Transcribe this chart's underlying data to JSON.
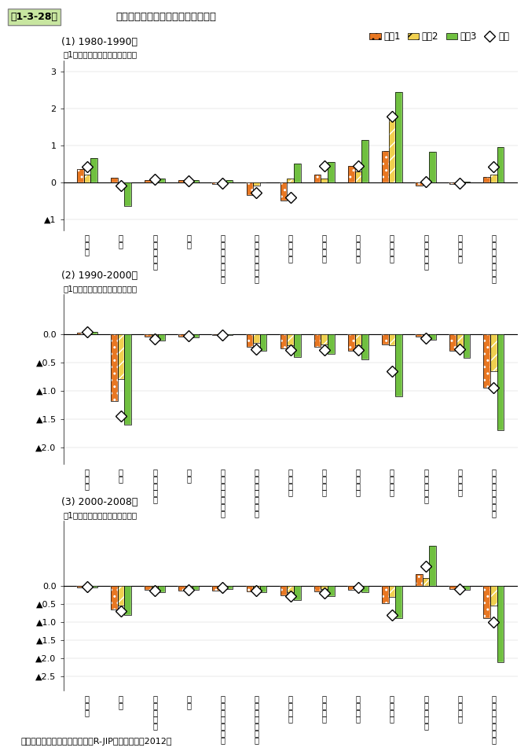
{
  "title_fig": "第1-3-28図",
  "title_main": "地域別に見た製造業就業者数の変化",
  "subtitle_note": "資料：（独）経済産業研究所「R-JIPデータベース2012」",
  "categories": [
    "食料品",
    "繊維",
    "パルプ・紙",
    "化学",
    "石油・石炭製品",
    "窯業・土石製品",
    "一次金属",
    "金属製品",
    "一般機械",
    "電気機械",
    "輸送用機械",
    "精密機械",
    "その他の製造業"
  ],
  "cat_display": [
    "食\n料\n品",
    "繊\n維",
    "パ\nル\nプ\n・\n紙",
    "化\n学",
    "石\n油\n・\n石\n炭\n製\n品",
    "窯\n業\n・\n土\n石\n製\n品",
    "一\n次\n金\n属",
    "金\n属\n製\n品",
    "一\n般\n機\n械",
    "電\n気\n機\n械",
    "輸\n送\n用\n機\n械",
    "精\n密\n機\n械",
    "そ\nの\n他\nの\n製\n造\n業"
  ],
  "panels": [
    {
      "title": "(1) 1980-1990年",
      "ylabel": "（1都道府県当たり平均、万人）",
      "ylim": [
        -1.3,
        3.3
      ],
      "yticks": [
        -1,
        0,
        1,
        2,
        3
      ],
      "ytick_labels": [
        "▲1",
        "0",
        "1",
        "2",
        "3"
      ],
      "data": {
        "chiiki1": [
          0.35,
          0.12,
          0.05,
          0.05,
          -0.05,
          -0.35,
          -0.5,
          0.2,
          0.45,
          0.85,
          -0.1,
          -0.05,
          0.15
        ],
        "chiiki2": [
          0.2,
          0.0,
          0.08,
          0.0,
          0.0,
          -0.1,
          0.1,
          0.1,
          0.3,
          1.7,
          0.05,
          -0.05,
          0.2
        ],
        "chiiki3": [
          0.65,
          -0.65,
          0.1,
          0.05,
          0.05,
          0.0,
          0.5,
          0.55,
          1.15,
          2.45,
          0.82,
          0.02,
          0.95
        ],
        "zenkoku": [
          0.42,
          -0.1,
          0.07,
          0.03,
          -0.03,
          -0.28,
          -0.42,
          0.45,
          0.45,
          1.78,
          0.02,
          -0.02,
          0.43
        ]
      }
    },
    {
      "title": "(2) 1990-2000年",
      "ylabel": "（1都道府県当たり平均、万人）",
      "ylim": [
        -2.3,
        0.7
      ],
      "yticks": [
        0.0,
        -0.5,
        -1.0,
        -1.5,
        -2.0
      ],
      "ytick_labels": [
        "0.0",
        "▲0.5",
        "▲1.0",
        "▲1.5",
        "▲2.0"
      ],
      "data": {
        "chiiki1": [
          0.03,
          -1.18,
          -0.05,
          -0.05,
          -0.02,
          -0.22,
          -0.25,
          -0.22,
          -0.3,
          -0.18,
          -0.05,
          -0.3,
          -0.95
        ],
        "chiiki2": [
          0.03,
          -0.8,
          -0.08,
          -0.03,
          0.0,
          -0.15,
          -0.2,
          -0.18,
          -0.2,
          -0.2,
          -0.05,
          -0.22,
          -0.65
        ],
        "chiiki3": [
          0.04,
          -1.6,
          -0.12,
          -0.06,
          -0.02,
          -0.3,
          -0.4,
          -0.35,
          -0.45,
          -1.1,
          -0.1,
          -0.42,
          -1.7
        ],
        "zenkoku": [
          0.04,
          -1.45,
          -0.08,
          -0.03,
          -0.01,
          -0.27,
          -0.28,
          -0.28,
          -0.28,
          -0.65,
          -0.07,
          -0.27,
          -0.95
        ]
      }
    },
    {
      "title": "(3) 2000-2008年",
      "ylabel": "（1都道府県当たり平均、万人）",
      "ylim": [
        -2.9,
        1.8
      ],
      "yticks": [
        0.0,
        -0.5,
        -1.0,
        -1.5,
        -2.0,
        -2.5
      ],
      "ytick_labels": [
        "0.0",
        "▲0.5",
        "▲1.0",
        "▲1.5",
        "▲2.0",
        "▲2.5"
      ],
      "data": {
        "chiiki1": [
          -0.05,
          -0.65,
          -0.1,
          -0.12,
          -0.12,
          -0.15,
          -0.25,
          -0.15,
          -0.1,
          -0.48,
          0.32,
          -0.08,
          -0.9
        ],
        "chiiki2": [
          0.02,
          -0.55,
          -0.08,
          -0.08,
          -0.05,
          -0.1,
          -0.18,
          -0.08,
          -0.05,
          -0.3,
          0.22,
          -0.1,
          -0.55
        ],
        "chiiki3": [
          -0.05,
          -0.8,
          -0.18,
          -0.1,
          -0.08,
          -0.18,
          -0.38,
          -0.28,
          -0.18,
          -0.9,
          1.12,
          -0.1,
          -2.1
        ],
        "zenkoku": [
          -0.02,
          -0.7,
          -0.12,
          -0.1,
          -0.05,
          -0.12,
          -0.28,
          -0.2,
          -0.05,
          -0.8,
          0.55,
          -0.08,
          -1.0
        ]
      }
    }
  ],
  "legend": {
    "chiiki1_label": "地域1",
    "chiiki2_label": "地域2",
    "chiiki3_label": "地域3",
    "zenkoku_label": "全国"
  },
  "colors": {
    "chiiki1": "#E87722",
    "chiiki2": "#F0D050",
    "chiiki3": "#70C040"
  },
  "hatches": {
    "chiiki1": "..",
    "chiiki2": "//",
    "chiiki3": "=="
  }
}
